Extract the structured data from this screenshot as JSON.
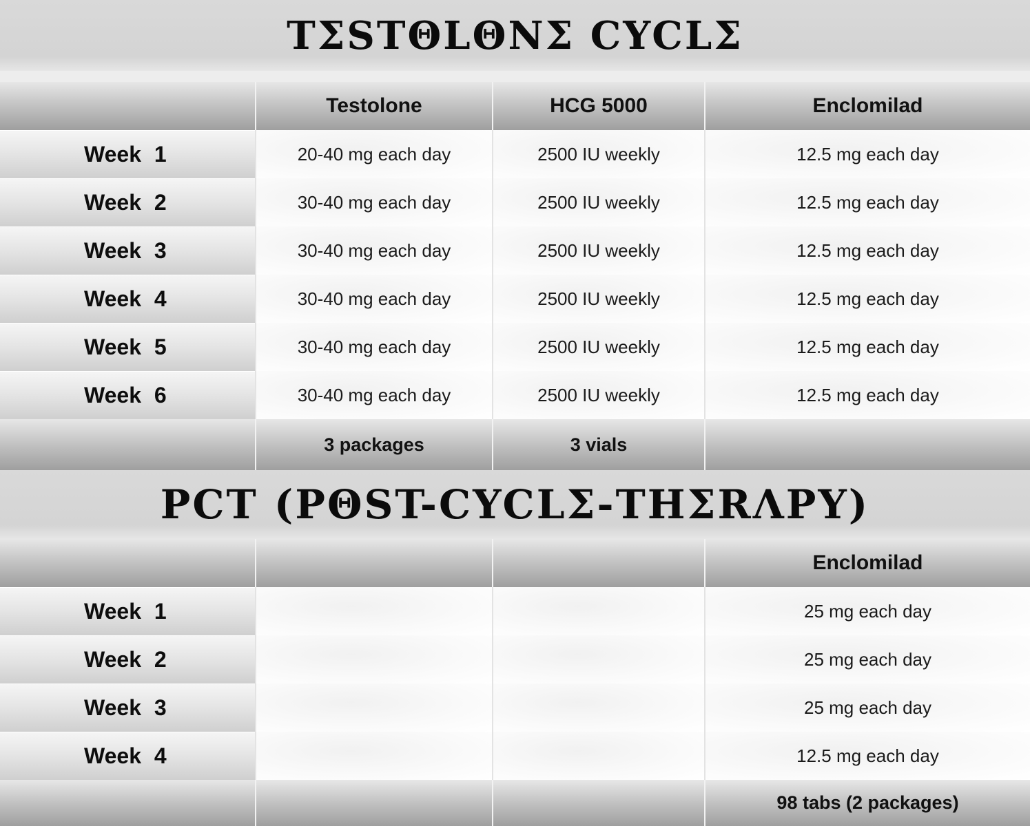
{
  "cycle": {
    "title": "TΣSTΘLΘNΣ CYCLΣ",
    "headers": [
      "",
      "Testolone",
      "HCG 5000",
      "Enclomilad"
    ],
    "rows": [
      {
        "week": "Week 1",
        "testolone": "20-40 mg each day",
        "hcg": "2500 IU weekly",
        "enclomilad": "12.5 mg each day"
      },
      {
        "week": "Week 2",
        "testolone": "30-40 mg each day",
        "hcg": "2500 IU weekly",
        "enclomilad": "12.5 mg each day"
      },
      {
        "week": "Week 3",
        "testolone": "30-40 mg each day",
        "hcg": "2500 IU weekly",
        "enclomilad": "12.5 mg each day"
      },
      {
        "week": "Week 4",
        "testolone": "30-40 mg each day",
        "hcg": "2500 IU weekly",
        "enclomilad": "12.5 mg each day"
      },
      {
        "week": "Week 5",
        "testolone": "30-40 mg each day",
        "hcg": "2500 IU weekly",
        "enclomilad": "12.5 mg each day"
      },
      {
        "week": "Week 6",
        "testolone": "30-40 mg each day",
        "hcg": "2500 IU weekly",
        "enclomilad": "12.5 mg each day"
      }
    ],
    "totals": [
      "",
      "3 packages",
      "3 vials",
      ""
    ]
  },
  "pct": {
    "title": "PCT (PΘST-CYCLΣ-THΣRΛPY)",
    "headers": [
      "",
      "",
      "",
      "Enclomilad"
    ],
    "rows": [
      {
        "week": "Week 1",
        "col1": "",
        "col2": "",
        "enclomilad": "25 mg each day"
      },
      {
        "week": "Week 2",
        "col1": "",
        "col2": "",
        "enclomilad": "25 mg each day"
      },
      {
        "week": "Week 3",
        "col1": "",
        "col2": "",
        "enclomilad": "25 mg each day"
      },
      {
        "week": "Week 4",
        "col1": "",
        "col2": "",
        "enclomilad": "12.5 mg each day"
      }
    ],
    "totals": [
      "",
      "",
      "",
      "98 tabs (2 packages)"
    ]
  }
}
